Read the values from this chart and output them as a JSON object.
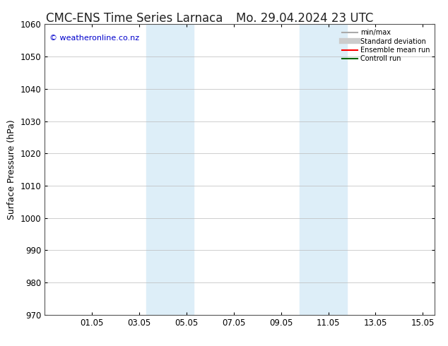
{
  "title_left": "CMC-ENS Time Series Larnaca",
  "title_right": "Mo. 29.04.2024 23 UTC",
  "ylabel": "Surface Pressure (hPa)",
  "ylim": [
    970,
    1060
  ],
  "yticks": [
    970,
    980,
    990,
    1000,
    1010,
    1020,
    1030,
    1040,
    1050,
    1060
  ],
  "xlim": [
    0.0,
    16.5
  ],
  "xtick_labels": [
    "01.05",
    "03.05",
    "05.05",
    "07.05",
    "09.05",
    "11.05",
    "13.05",
    "15.05"
  ],
  "xtick_positions": [
    2,
    4,
    6,
    8,
    10,
    12,
    14,
    16
  ],
  "shaded_bands": [
    {
      "x_start": 4.3,
      "x_end": 6.3,
      "color": "#ddeef8"
    },
    {
      "x_start": 10.8,
      "x_end": 12.8,
      "color": "#ddeef8"
    }
  ],
  "watermark": "© weatheronline.co.nz",
  "watermark_color": "#0000cc",
  "legend_entries": [
    {
      "label": "min/max",
      "color": "#aaaaaa",
      "lw": 1.5,
      "style": "solid"
    },
    {
      "label": "Standard deviation",
      "color": "#cccccc",
      "lw": 6,
      "style": "solid"
    },
    {
      "label": "Ensemble mean run",
      "color": "#ff0000",
      "lw": 1.5,
      "style": "solid"
    },
    {
      "label": "Controll run",
      "color": "#006600",
      "lw": 1.5,
      "style": "solid"
    }
  ],
  "background_color": "#ffffff",
  "plot_bg_color": "#ffffff",
  "grid_color": "#bbbbbb",
  "title_fontsize": 12,
  "axis_label_fontsize": 9,
  "tick_fontsize": 8.5
}
